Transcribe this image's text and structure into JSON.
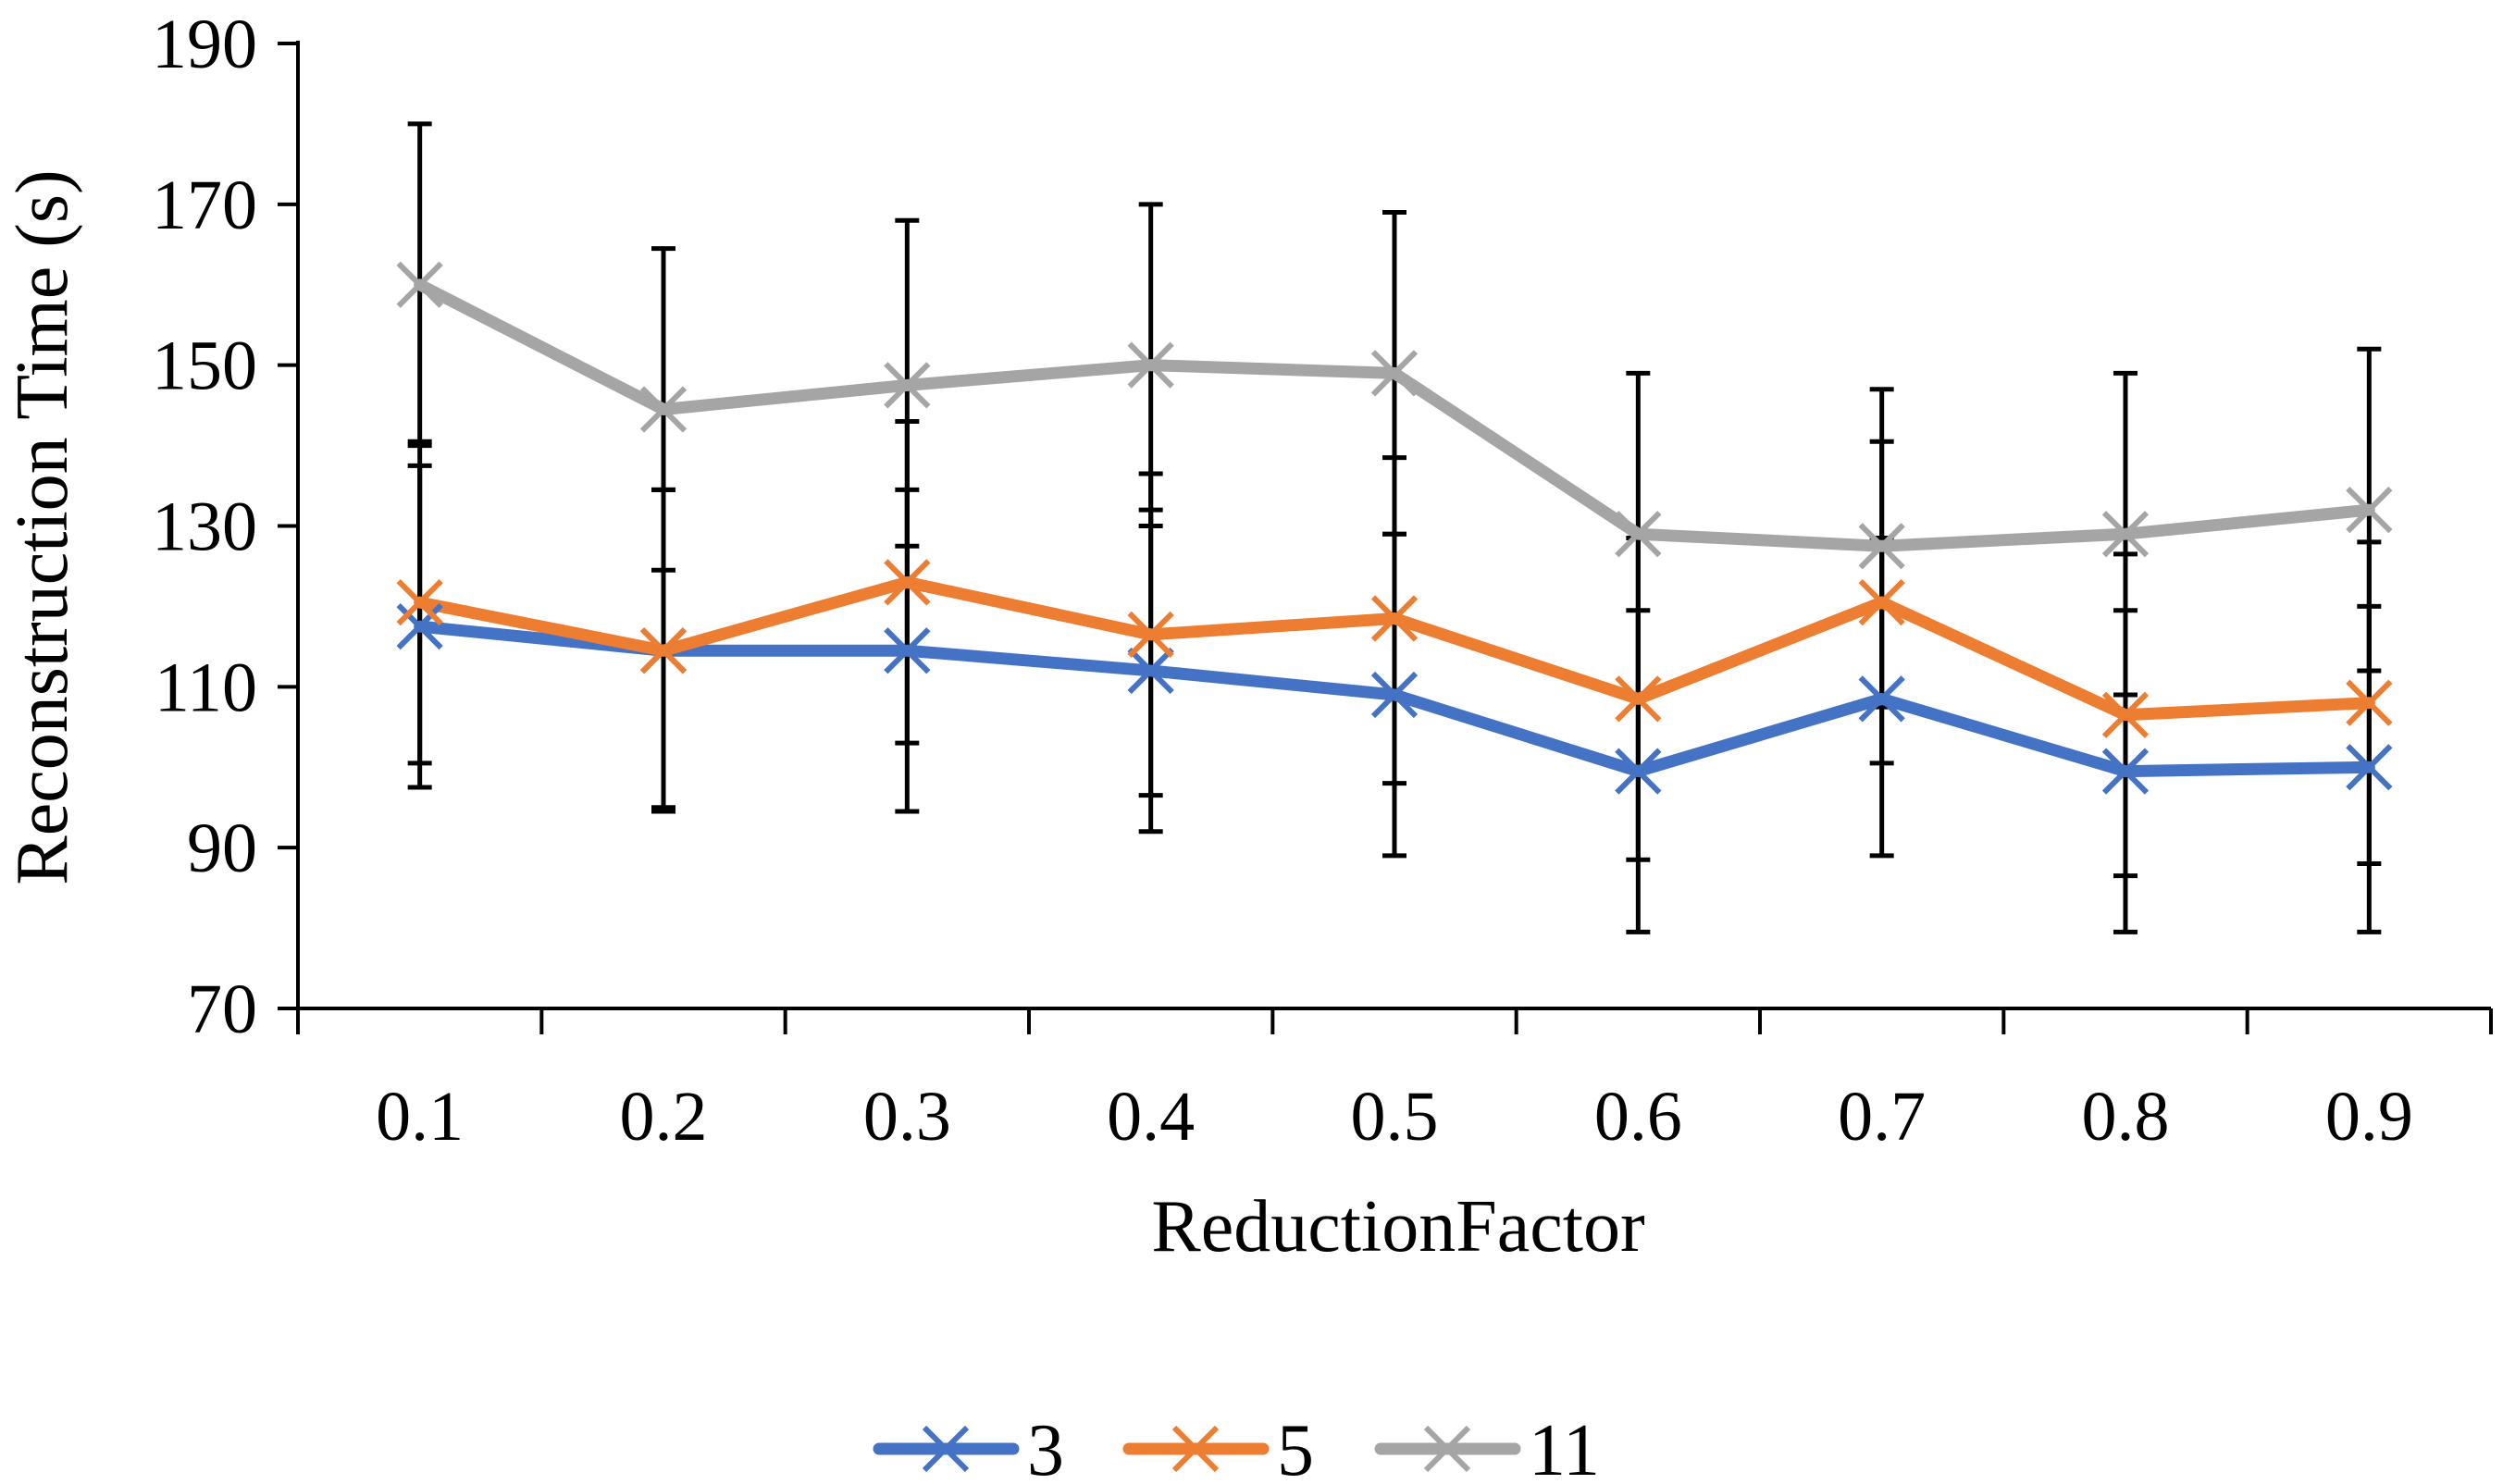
{
  "chart_data": {
    "type": "line",
    "title": "",
    "xlabel": "ReductionFactor",
    "ylabel": "Reconstruction Time (s)",
    "ylim": [
      70,
      190
    ],
    "yticks": [
      70,
      90,
      110,
      130,
      150,
      170,
      190
    ],
    "categories": [
      "0.1",
      "0.2",
      "0.3",
      "0.4",
      "0.5",
      "0.6",
      "0.7",
      "0.8",
      "0.9"
    ],
    "grid": false,
    "legend": "bottom",
    "series": [
      {
        "name": "3",
        "color": "#4472C4",
        "values": [
          117.5,
          114.5,
          114.5,
          112,
          109,
          99.5,
          108.5,
          99.5,
          100
        ],
        "error_low": [
          97.5,
          95,
          94.5,
          92,
          89,
          79.5,
          89,
          79.5,
          79.5
        ],
        "error_high": [
          137.5,
          134.5,
          134.5,
          132,
          129,
          119.5,
          128.5,
          119.5,
          120
        ]
      },
      {
        "name": "5",
        "color": "#ED7D31",
        "values": [
          120.5,
          114.5,
          123,
          116.5,
          118.5,
          108.5,
          120.5,
          106.5,
          108
        ],
        "error_low": [
          100.5,
          94.5,
          103,
          96.5,
          98,
          88.5,
          100.5,
          86.5,
          88
        ],
        "error_high": [
          140.5,
          134.5,
          143,
          136.5,
          138.5,
          128.5,
          140.5,
          126.5,
          128
        ]
      },
      {
        "name": "11",
        "color": "#A5A5A5",
        "values": [
          160,
          144.5,
          147.5,
          150,
          149,
          129,
          127.5,
          129,
          132
        ],
        "error_low": [
          140,
          124.5,
          127.5,
          130,
          129,
          109,
          107.5,
          109,
          112
        ],
        "error_high": [
          180,
          164.5,
          168,
          170,
          169,
          149,
          147,
          149,
          152
        ]
      }
    ]
  }
}
